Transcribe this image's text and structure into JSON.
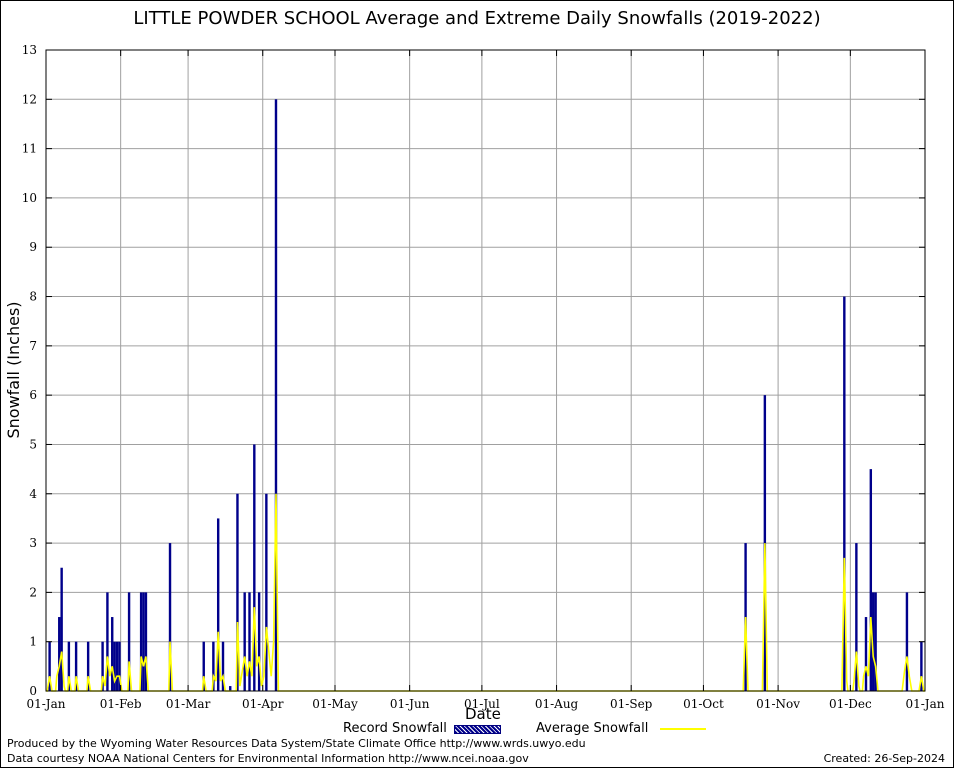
{
  "chart_data": {
    "type": "bar",
    "title": "LITTLE POWDER SCHOOL Average and Extreme Daily Snowfalls (2019-2022)",
    "xlabel": "Date",
    "ylabel": "Snowfall (Inches)",
    "ylim": [
      0,
      13
    ],
    "yticks": [
      "0",
      "1",
      "2",
      "3",
      "4",
      "5",
      "6",
      "7",
      "8",
      "9",
      "10",
      "11",
      "12",
      "13"
    ],
    "xlim": [
      "01-Jan",
      "01-Jan"
    ],
    "xticks": [
      "01-Jan",
      "01-Feb",
      "01-Mar",
      "01-Apr",
      "01-May",
      "01-Jun",
      "01-Jul",
      "01-Aug",
      "01-Sep",
      "01-Oct",
      "01-Nov",
      "01-Dec",
      "01-Jan"
    ],
    "grid": true,
    "legend_position": "bottom",
    "series": [
      {
        "name": "Record Snowfall",
        "style": "bars",
        "color": "#00008b",
        "points": [
          {
            "date": "02-Jan",
            "value": 1.0
          },
          {
            "date": "06-Jan",
            "value": 1.5
          },
          {
            "date": "07-Jan",
            "value": 2.5
          },
          {
            "date": "10-Jan",
            "value": 1.0
          },
          {
            "date": "13-Jan",
            "value": 1.0
          },
          {
            "date": "18-Jan",
            "value": 1.0
          },
          {
            "date": "24-Jan",
            "value": 1.0
          },
          {
            "date": "26-Jan",
            "value": 2.0
          },
          {
            "date": "28-Jan",
            "value": 1.5
          },
          {
            "date": "29-Jan",
            "value": 1.0
          },
          {
            "date": "30-Jan",
            "value": 1.0
          },
          {
            "date": "31-Jan",
            "value": 1.0
          },
          {
            "date": "04-Feb",
            "value": 2.0
          },
          {
            "date": "09-Feb",
            "value": 2.0
          },
          {
            "date": "10-Feb",
            "value": 2.0
          },
          {
            "date": "11-Feb",
            "value": 2.0
          },
          {
            "date": "21-Feb",
            "value": 3.0
          },
          {
            "date": "07-Mar",
            "value": 1.0
          },
          {
            "date": "11-Mar",
            "value": 1.0
          },
          {
            "date": "13-Mar",
            "value": 3.5
          },
          {
            "date": "15-Mar",
            "value": 1.0
          },
          {
            "date": "18-Mar",
            "value": 0.1
          },
          {
            "date": "21-Mar",
            "value": 4.0
          },
          {
            "date": "24-Mar",
            "value": 2.0
          },
          {
            "date": "26-Mar",
            "value": 2.0
          },
          {
            "date": "28-Mar",
            "value": 5.0
          },
          {
            "date": "30-Mar",
            "value": 2.0
          },
          {
            "date": "02-Apr",
            "value": 4.0
          },
          {
            "date": "06-Apr",
            "value": 12.0
          },
          {
            "date": "18-Oct",
            "value": 3.0
          },
          {
            "date": "26-Oct",
            "value": 6.0
          },
          {
            "date": "28-Nov",
            "value": 8.0
          },
          {
            "date": "03-Dec",
            "value": 3.0
          },
          {
            "date": "07-Dec",
            "value": 1.5
          },
          {
            "date": "09-Dec",
            "value": 4.5
          },
          {
            "date": "10-Dec",
            "value": 2.0
          },
          {
            "date": "11-Dec",
            "value": 2.0
          },
          {
            "date": "24-Dec",
            "value": 2.0
          },
          {
            "date": "30-Dec",
            "value": 1.0
          }
        ]
      },
      {
        "name": "Average Snowfall",
        "style": "line",
        "color": "#ffff00",
        "points": [
          {
            "date": "01-Jan",
            "value": 0
          },
          {
            "date": "02-Jan",
            "value": 0.3
          },
          {
            "date": "03-Jan",
            "value": 0
          },
          {
            "date": "05-Jan",
            "value": 0.3
          },
          {
            "date": "06-Jan",
            "value": 0.5
          },
          {
            "date": "07-Jan",
            "value": 0.8
          },
          {
            "date": "08-Jan",
            "value": 0.1
          },
          {
            "date": "10-Jan",
            "value": 0.3
          },
          {
            "date": "11-Jan",
            "value": 0
          },
          {
            "date": "13-Jan",
            "value": 0.3
          },
          {
            "date": "14-Jan",
            "value": 0
          },
          {
            "date": "18-Jan",
            "value": 0.3
          },
          {
            "date": "19-Jan",
            "value": 0
          },
          {
            "date": "24-Jan",
            "value": 0.3
          },
          {
            "date": "25-Jan",
            "value": 0.1
          },
          {
            "date": "26-Jan",
            "value": 0.7
          },
          {
            "date": "27-Jan",
            "value": 0.3
          },
          {
            "date": "28-Jan",
            "value": 0.5
          },
          {
            "date": "29-Jan",
            "value": 0.2
          },
          {
            "date": "30-Jan",
            "value": 0.3
          },
          {
            "date": "31-Jan",
            "value": 0.3
          },
          {
            "date": "01-Feb",
            "value": 0
          },
          {
            "date": "04-Feb",
            "value": 0.6
          },
          {
            "date": "05-Feb",
            "value": 0
          },
          {
            "date": "09-Feb",
            "value": 0.7
          },
          {
            "date": "10-Feb",
            "value": 0.5
          },
          {
            "date": "11-Feb",
            "value": 0.7
          },
          {
            "date": "12-Feb",
            "value": 0
          },
          {
            "date": "21-Feb",
            "value": 1.0
          },
          {
            "date": "22-Feb",
            "value": 0
          },
          {
            "date": "07-Mar",
            "value": 0.3
          },
          {
            "date": "08-Mar",
            "value": 0
          },
          {
            "date": "11-Mar",
            "value": 0.3
          },
          {
            "date": "12-Mar",
            "value": 0.2
          },
          {
            "date": "13-Mar",
            "value": 1.2
          },
          {
            "date": "14-Mar",
            "value": 0.2
          },
          {
            "date": "15-Mar",
            "value": 0.3
          },
          {
            "date": "16-Mar",
            "value": 0
          },
          {
            "date": "21-Mar",
            "value": 1.4
          },
          {
            "date": "22-Mar",
            "value": 0.1
          },
          {
            "date": "23-Mar",
            "value": 0.4
          },
          {
            "date": "24-Mar",
            "value": 0.7
          },
          {
            "date": "25-Mar",
            "value": 0.3
          },
          {
            "date": "26-Mar",
            "value": 0.6
          },
          {
            "date": "27-Mar",
            "value": 0.3
          },
          {
            "date": "28-Mar",
            "value": 1.7
          },
          {
            "date": "29-Mar",
            "value": 0.5
          },
          {
            "date": "30-Mar",
            "value": 0.7
          },
          {
            "date": "31-Mar",
            "value": 0.1
          },
          {
            "date": "01-Apr",
            "value": 0.3
          },
          {
            "date": "02-Apr",
            "value": 1.3
          },
          {
            "date": "03-Apr",
            "value": 0.8
          },
          {
            "date": "04-Apr",
            "value": 0.3
          },
          {
            "date": "05-Apr",
            "value": 1.0
          },
          {
            "date": "06-Apr",
            "value": 4.0
          },
          {
            "date": "07-Apr",
            "value": 0
          },
          {
            "date": "17-Oct",
            "value": 0
          },
          {
            "date": "18-Oct",
            "value": 1.5
          },
          {
            "date": "19-Oct",
            "value": 0
          },
          {
            "date": "25-Oct",
            "value": 0
          },
          {
            "date": "26-Oct",
            "value": 3.0
          },
          {
            "date": "27-Oct",
            "value": 0
          },
          {
            "date": "27-Nov",
            "value": 0
          },
          {
            "date": "28-Nov",
            "value": 2.7
          },
          {
            "date": "29-Nov",
            "value": 0.2
          },
          {
            "date": "02-Dec",
            "value": 0.2
          },
          {
            "date": "03-Dec",
            "value": 0.8
          },
          {
            "date": "04-Dec",
            "value": 0.1
          },
          {
            "date": "06-Dec",
            "value": 0.3
          },
          {
            "date": "07-Dec",
            "value": 0.5
          },
          {
            "date": "08-Dec",
            "value": 0.3
          },
          {
            "date": "09-Dec",
            "value": 1.5
          },
          {
            "date": "10-Dec",
            "value": 0.7
          },
          {
            "date": "11-Dec",
            "value": 0.5
          },
          {
            "date": "12-Dec",
            "value": 0
          },
          {
            "date": "22-Dec",
            "value": 0
          },
          {
            "date": "23-Dec",
            "value": 0.4
          },
          {
            "date": "24-Dec",
            "value": 0.7
          },
          {
            "date": "25-Dec",
            "value": 0.3
          },
          {
            "date": "26-Dec",
            "value": 0
          },
          {
            "date": "29-Dec",
            "value": 0
          },
          {
            "date": "30-Dec",
            "value": 0.3
          },
          {
            "date": "31-Dec",
            "value": 0
          }
        ]
      }
    ]
  },
  "legend": {
    "record_label": "Record Snowfall",
    "average_label": "Average Snowfall"
  },
  "footer": {
    "produced_by": "Produced by the Wyoming Water Resources Data System/State Climate Office http://www.wrds.uwyo.edu",
    "courtesy": "Data courtesy NOAA National Centers for Environmental Information http://www.ncei.noaa.gov",
    "created": "Created:  26-Sep-2024"
  },
  "colors": {
    "record_bar": "#00008b",
    "average_line": "#ffff00",
    "grid": "#a0a0a0"
  }
}
